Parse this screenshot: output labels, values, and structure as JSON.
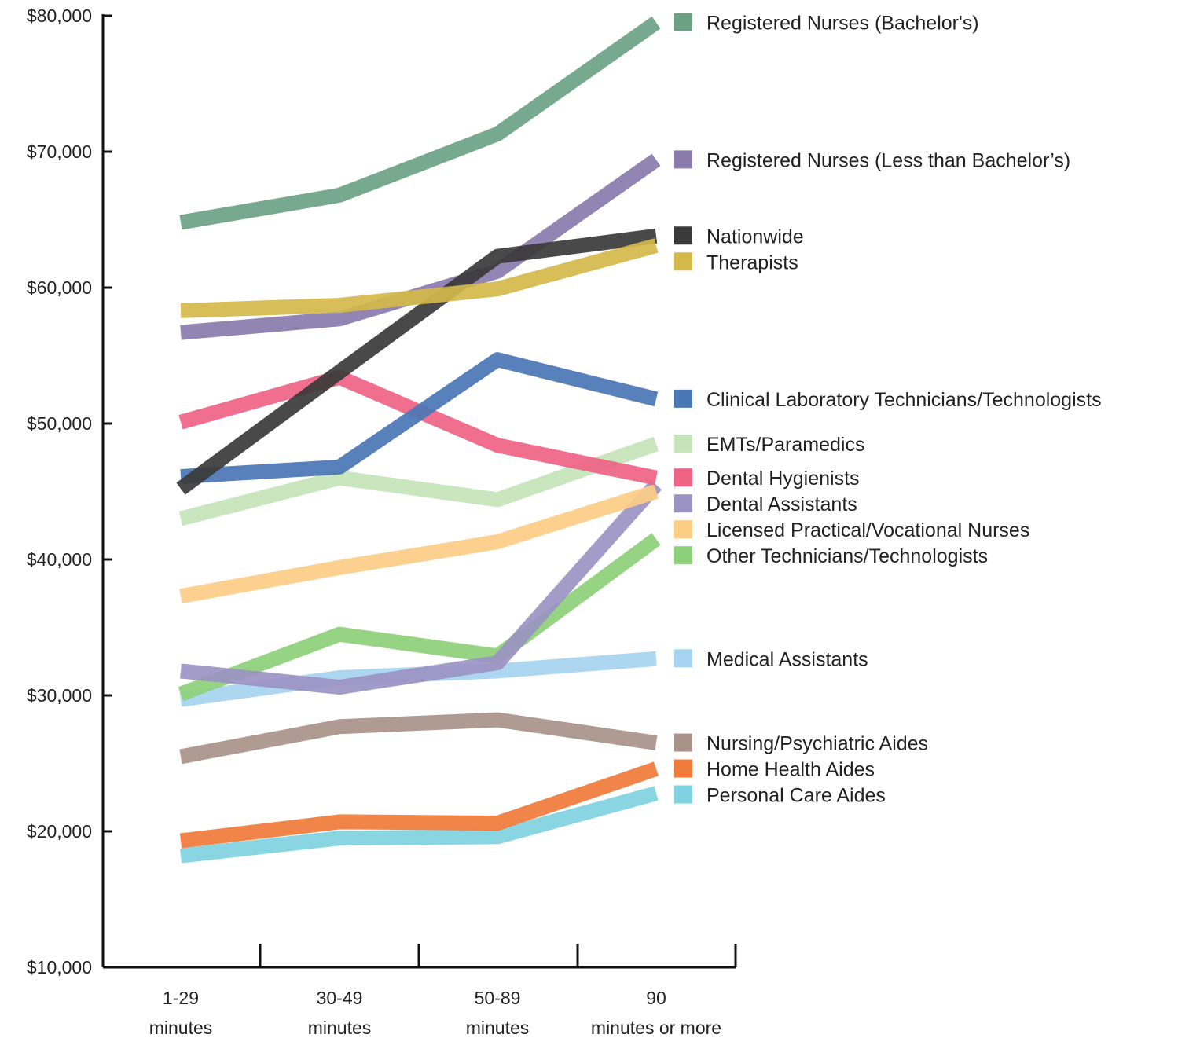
{
  "chart_data": {
    "type": "line",
    "title": "",
    "xlabel": "",
    "ylabel": "",
    "ylim": [
      10000,
      80000
    ],
    "yticks": [
      {
        "value": 10000,
        "label": "$10,000"
      },
      {
        "value": 20000,
        "label": "$20,000"
      },
      {
        "value": 30000,
        "label": "$30,000"
      },
      {
        "value": 40000,
        "label": "$40,000"
      },
      {
        "value": 50000,
        "label": "$50,000"
      },
      {
        "value": 60000,
        "label": "$60,000"
      },
      {
        "value": 70000,
        "label": "$70,000"
      },
      {
        "value": 80000,
        "label": "$80,000"
      }
    ],
    "categories": [
      {
        "line1": "1-29",
        "line2": "minutes"
      },
      {
        "line1": "30-49",
        "line2": "minutes"
      },
      {
        "line1": "50-89",
        "line2": "minutes"
      },
      {
        "line1": "90",
        "line2": "minutes or more"
      }
    ],
    "grid": false,
    "legend_placement": "right",
    "series": [
      {
        "name": "Personal Care Aides",
        "color": "#7fd3e0",
        "values": [
          18200,
          19500,
          19600,
          22800
        ]
      },
      {
        "name": "Home Health Aides",
        "color": "#f07a3a",
        "values": [
          19300,
          20700,
          20600,
          24600
        ]
      },
      {
        "name": "Nursing/Psychiatric Aides",
        "color": "#a9928a",
        "values": [
          25500,
          27700,
          28200,
          26500
        ]
      },
      {
        "name": "Medical Assistants",
        "color": "#a6d3f0",
        "values": [
          29700,
          31300,
          31800,
          32700
        ]
      },
      {
        "name": "Other Technicians/Technologists",
        "color": "#8dd07a",
        "values": [
          30100,
          34500,
          32900,
          41500
        ]
      },
      {
        "name": "Dental Assistants",
        "color": "#9b93c3",
        "values": [
          31800,
          30600,
          32400,
          45500
        ]
      },
      {
        "name": "Licensed Practical/Vocational Nurses",
        "color": "#fccd85",
        "values": [
          37300,
          39400,
          41300,
          45000
        ]
      },
      {
        "name": "EMTs/Paramedics",
        "color": "#c5e4b8",
        "values": [
          43000,
          46000,
          44400,
          48500
        ]
      },
      {
        "name": "Dental Hygienists",
        "color": "#ef6384",
        "values": [
          50100,
          53400,
          48400,
          46000
        ]
      },
      {
        "name": "Clinical Laboratory Technicians/Technologists",
        "color": "#4a76b5",
        "values": [
          46100,
          46800,
          54700,
          51800
        ]
      },
      {
        "name": "Registered Nurses (Less than Bachelor’s)",
        "color": "#8a7bac",
        "values": [
          56700,
          57700,
          61200,
          69400
        ]
      },
      {
        "name": "Nationwide",
        "color": "#3a3a3a",
        "values": [
          45200,
          53800,
          62300,
          63800
        ]
      },
      {
        "name": "Therapists",
        "color": "#d4b94a",
        "values": [
          58300,
          58700,
          59900,
          63100
        ]
      },
      {
        "name": "Registered Nurses (Bachelor's)",
        "color": "#6aa283",
        "values": [
          64800,
          66800,
          71300,
          79500
        ]
      }
    ],
    "legend": [
      {
        "label": "Registered Nurses (Bachelor's)",
        "color": "#6aa283",
        "series": "Registered Nurses (Bachelor's)"
      },
      {
        "label": "Registered Nurses (Less than Bachelor’s)",
        "color": "#8a7bac",
        "series": "Registered Nurses (Less than Bachelor’s)"
      },
      {
        "label": "Nationwide",
        "color": "#3a3a3a",
        "series": "Nationwide"
      },
      {
        "label": "Therapists",
        "color": "#d4b94a",
        "series": "Therapists"
      },
      {
        "label": "Clinical Laboratory Technicians/Technologists",
        "color": "#4a76b5",
        "series": "Clinical Laboratory Technicians/Technologists"
      },
      {
        "label": "EMTs/Paramedics",
        "color": "#c5e4b8",
        "series": "EMTs/Paramedics"
      },
      {
        "label": "Dental Hygienists",
        "color": "#ef6384",
        "series": "Dental Hygienists"
      },
      {
        "label": "Dental Assistants",
        "color": "#9b93c3",
        "series": "Dental Assistants"
      },
      {
        "label": "Licensed Practical/Vocational Nurses",
        "color": "#fccd85",
        "series": "Licensed Practical/Vocational Nurses"
      },
      {
        "label": "Other Technicians/Technologists",
        "color": "#8dd07a",
        "series": "Other Technicians/Technologists"
      },
      {
        "label": "Medical Assistants",
        "color": "#a6d3f0",
        "series": "Medical Assistants"
      },
      {
        "label": "Nursing/Psychiatric Aides",
        "color": "#a9928a",
        "series": "Nursing/Psychiatric Aides"
      },
      {
        "label": "Home Health Aides",
        "color": "#f07a3a",
        "series": "Home Health Aides"
      },
      {
        "label": "Personal Care Aides",
        "color": "#7fd3e0",
        "series": "Personal Care Aides"
      }
    ]
  }
}
